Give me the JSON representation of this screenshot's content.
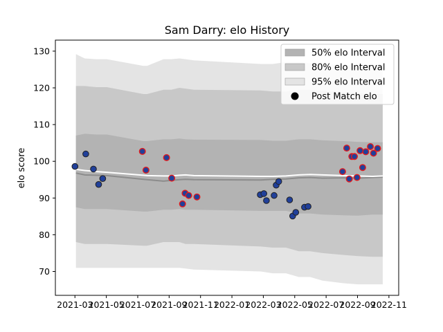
{
  "chart_data": {
    "type": "area",
    "title": "Sam Darry: elo History",
    "xlabel": "",
    "ylabel": "elo score",
    "xlim": [
      "2021-01-22",
      "2022-11-20"
    ],
    "ylim": [
      63.5,
      133
    ],
    "x_ticks": [
      "2021-03",
      "2021-05",
      "2021-07",
      "2021-09",
      "2021-11",
      "2022-01",
      "2022-03",
      "2022-05",
      "2022-07",
      "2022-09",
      "2022-11"
    ],
    "y_ticks": [
      70,
      80,
      90,
      100,
      110,
      120,
      130
    ],
    "grid": false,
    "legend_position": "top-right",
    "colors": {
      "band_50": "#b3b3b3",
      "band_80": "#c8c8c8",
      "band_95": "#e4e4e4",
      "mean_line": "#8c8c8c",
      "elo_line": "#ffffff",
      "point_blue": "#21409a",
      "point_red": "#e31a1c",
      "point_edge": "#222222"
    },
    "legend": [
      {
        "key": "band_50",
        "label": "50% elo Interval",
        "kind": "patch",
        "color": "#b3b3b3"
      },
      {
        "key": "band_80",
        "label": "80% elo Interval",
        "kind": "patch",
        "color": "#c8c8c8"
      },
      {
        "key": "band_95",
        "label": "95% elo Interval",
        "kind": "patch",
        "color": "#e4e4e4"
      },
      {
        "key": "post_match",
        "label": "Post Match elo",
        "kind": "marker",
        "color": "#000000"
      }
    ],
    "x": [
      "2021-03-03",
      "2021-03-20",
      "2021-04-12",
      "2021-05-02",
      "2021-07-12",
      "2021-07-19",
      "2021-08-20",
      "2021-09-04",
      "2021-09-20",
      "2021-10-02",
      "2021-10-18",
      "2022-02-25",
      "2022-03-20",
      "2022-04-15",
      "2022-05-10",
      "2022-06-01",
      "2022-06-25",
      "2022-08-05",
      "2022-09-02",
      "2022-09-30",
      "2022-10-20"
    ],
    "band_95": {
      "lower": [
        71,
        71,
        71,
        71,
        71,
        71,
        71,
        71,
        71,
        70.8,
        70.5,
        70,
        69.5,
        69.5,
        68.5,
        68.5,
        67.5,
        66.8,
        66.5,
        66.5,
        66.5
      ],
      "upper": [
        129.2,
        128,
        127.8,
        127.8,
        126,
        126,
        127.8,
        127.8,
        128,
        127.8,
        127.5,
        126.5,
        126.5,
        127,
        127,
        126.7,
        126.5,
        126.3,
        126,
        126,
        126
      ]
    },
    "band_80": {
      "lower": [
        78,
        77.5,
        77.5,
        77.5,
        77,
        77,
        78,
        78,
        78,
        77.5,
        77.5,
        76.8,
        76.5,
        76.5,
        75.5,
        75.5,
        75,
        74.5,
        74.2,
        74,
        74
      ],
      "upper": [
        120.5,
        120.5,
        120.2,
        120.2,
        118.3,
        118.3,
        119.5,
        119.5,
        120,
        119.8,
        119.5,
        119.3,
        119,
        119,
        119.5,
        119.5,
        119.2,
        118.8,
        118.5,
        118.3,
        118.3
      ]
    },
    "band_50": {
      "lower": [
        87.5,
        87,
        87,
        87,
        86.3,
        86.3,
        86.8,
        86.8,
        87,
        86.8,
        86.8,
        86.5,
        86.5,
        86.5,
        85.8,
        85.8,
        85.5,
        85.3,
        85.2,
        85.5,
        85.5
      ],
      "upper": [
        107,
        107.5,
        107.3,
        107.3,
        105.5,
        105.5,
        106,
        106,
        106.2,
        106,
        105.9,
        105.8,
        105.6,
        105.6,
        106,
        106,
        105.7,
        105.5,
        105.3,
        105.2,
        105.2
      ]
    },
    "mean_line": [
      96.8,
      96.3,
      96.2,
      96.1,
      95.1,
      95.0,
      94.6,
      94.8,
      95.0,
      95.1,
      95.0,
      94.9,
      95.1,
      95.2,
      95.5,
      95.6,
      95.4,
      95.5,
      95.4,
      95.6,
      95.7
    ],
    "elo_line": [
      97.8,
      97.5,
      97.2,
      97.0,
      96.2,
      96.1,
      96.0,
      96.0,
      96.2,
      96.3,
      96.1,
      95.9,
      95.9,
      96.0,
      96.3,
      96.4,
      96.3,
      96.1,
      96.0,
      95.9,
      96.0
    ],
    "post_match_points": [
      {
        "x": "2021-03-01",
        "y": 98.6,
        "c": "blue"
      },
      {
        "x": "2021-03-22",
        "y": 102.0,
        "c": "blue"
      },
      {
        "x": "2021-04-06",
        "y": 97.9,
        "c": "blue"
      },
      {
        "x": "2021-04-16",
        "y": 93.7,
        "c": "blue"
      },
      {
        "x": "2021-04-24",
        "y": 95.3,
        "c": "blue"
      },
      {
        "x": "2021-07-10",
        "y": 102.7,
        "c": "red"
      },
      {
        "x": "2021-07-17",
        "y": 97.6,
        "c": "red"
      },
      {
        "x": "2021-08-26",
        "y": 101.0,
        "c": "red"
      },
      {
        "x": "2021-09-05",
        "y": 95.4,
        "c": "red"
      },
      {
        "x": "2021-09-26",
        "y": 88.4,
        "c": "red"
      },
      {
        "x": "2021-10-01",
        "y": 91.3,
        "c": "red"
      },
      {
        "x": "2021-10-08",
        "y": 90.7,
        "c": "red"
      },
      {
        "x": "2021-10-24",
        "y": 90.3,
        "c": "red"
      },
      {
        "x": "2022-02-24",
        "y": 90.9,
        "c": "blue"
      },
      {
        "x": "2022-03-03",
        "y": 91.2,
        "c": "blue"
      },
      {
        "x": "2022-03-08",
        "y": 89.3,
        "c": "blue"
      },
      {
        "x": "2022-03-23",
        "y": 90.7,
        "c": "blue"
      },
      {
        "x": "2022-03-27",
        "y": 93.5,
        "c": "blue"
      },
      {
        "x": "2022-04-01",
        "y": 94.5,
        "c": "blue"
      },
      {
        "x": "2022-04-22",
        "y": 89.5,
        "c": "blue"
      },
      {
        "x": "2022-04-28",
        "y": 85.1,
        "c": "blue"
      },
      {
        "x": "2022-05-04",
        "y": 86.1,
        "c": "blue"
      },
      {
        "x": "2022-05-21",
        "y": 87.5,
        "c": "blue"
      },
      {
        "x": "2022-05-28",
        "y": 87.7,
        "c": "blue"
      },
      {
        "x": "2022-08-03",
        "y": 97.2,
        "c": "red"
      },
      {
        "x": "2022-08-11",
        "y": 103.6,
        "c": "red"
      },
      {
        "x": "2022-08-16",
        "y": 95.2,
        "c": "red"
      },
      {
        "x": "2022-08-21",
        "y": 101.3,
        "c": "red"
      },
      {
        "x": "2022-08-26",
        "y": 101.3,
        "c": "red"
      },
      {
        "x": "2022-08-31",
        "y": 95.6,
        "c": "red"
      },
      {
        "x": "2022-09-06",
        "y": 102.9,
        "c": "red"
      },
      {
        "x": "2022-09-11",
        "y": 98.3,
        "c": "red"
      },
      {
        "x": "2022-09-17",
        "y": 102.6,
        "c": "red"
      },
      {
        "x": "2022-09-26",
        "y": 104.0,
        "c": "red"
      },
      {
        "x": "2022-10-02",
        "y": 102.2,
        "c": "red"
      },
      {
        "x": "2022-10-10",
        "y": 103.5,
        "c": "red"
      }
    ]
  }
}
